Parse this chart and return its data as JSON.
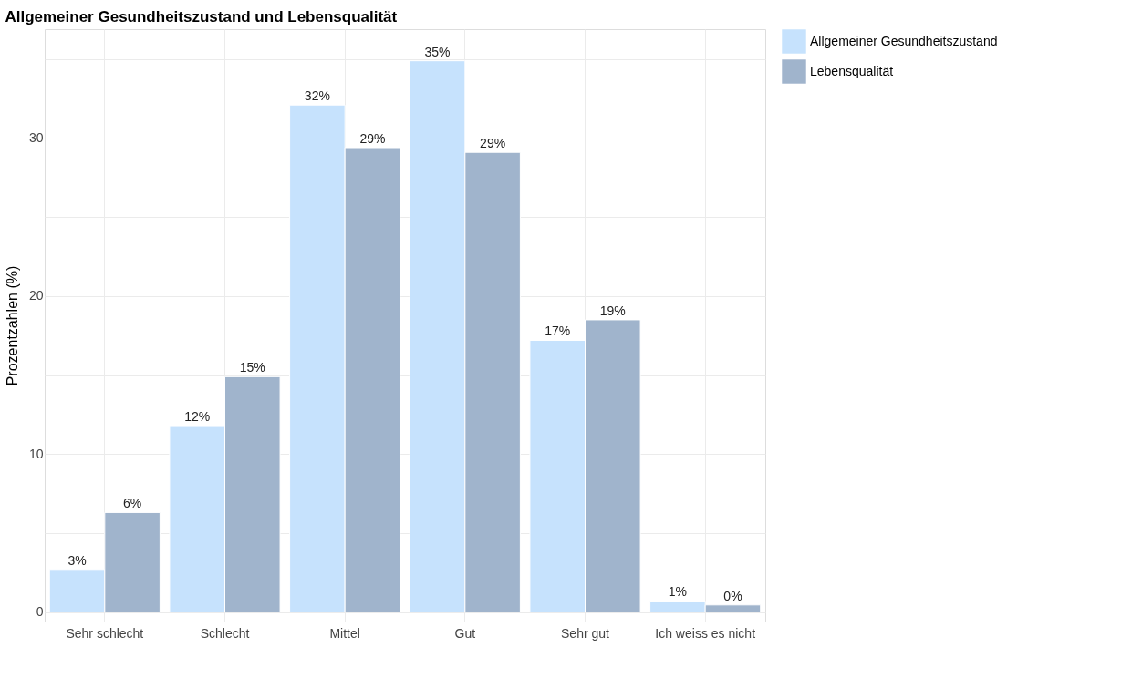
{
  "chart_data": {
    "type": "bar",
    "title": "Allgemeiner Gesundheitszustand und Lebensqualität",
    "ylabel": "Prozentzahlen (%)",
    "categories": [
      "Sehr schlecht",
      "Schlecht",
      "Mittel",
      "Gut",
      "Sehr gut",
      "Ich weiss es nicht"
    ],
    "series": [
      {
        "name": "Allgemeiner Gesundheitszustand",
        "color": "#c6e2fd",
        "values": [
          2.7,
          11.8,
          32.1,
          34.9,
          17.2,
          0.7
        ],
        "value_labels": [
          "3%",
          "12%",
          "32%",
          "35%",
          "17%",
          "1%"
        ]
      },
      {
        "name": "Lebensqualität",
        "color": "#a0b4cc",
        "values": [
          6.3,
          14.9,
          29.4,
          29.1,
          18.5,
          0.45
        ],
        "value_labels": [
          "6%",
          "15%",
          "29%",
          "29%",
          "19%",
          "0%"
        ]
      }
    ],
    "ylim": [
      -0.6,
      36.9
    ],
    "yticks": [
      0,
      {
        "value": 5,
        "label": null
      },
      10,
      {
        "value": 15,
        "label": null
      },
      20,
      {
        "value": 25,
        "label": null
      },
      30,
      {
        "value": 35,
        "label": null
      }
    ],
    "grid": true,
    "legend": "right"
  }
}
